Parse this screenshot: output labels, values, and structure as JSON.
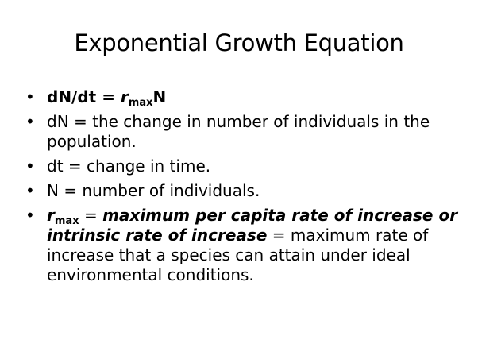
{
  "slide": {
    "title": "Exponential Growth Equation",
    "bullet_glyph": "•",
    "bullet1": {
      "lhs": "dN/dt = ",
      "r": "r",
      "sub": "max",
      "n": "N"
    },
    "bullet2": {
      "text": "dN = the change in number of individuals in the population."
    },
    "bullet3": {
      "text": "dt = change in time."
    },
    "bullet4": {
      "text": "N = number of individuals."
    },
    "bullet5": {
      "r": "r",
      "sub": "max",
      "eq1": " = ",
      "definition": "maximum per capita rate of increase or intrinsic rate of increase",
      "eq2": " = ",
      "rest": "maximum rate of increase that a species can attain under ideal environmental conditions."
    }
  }
}
